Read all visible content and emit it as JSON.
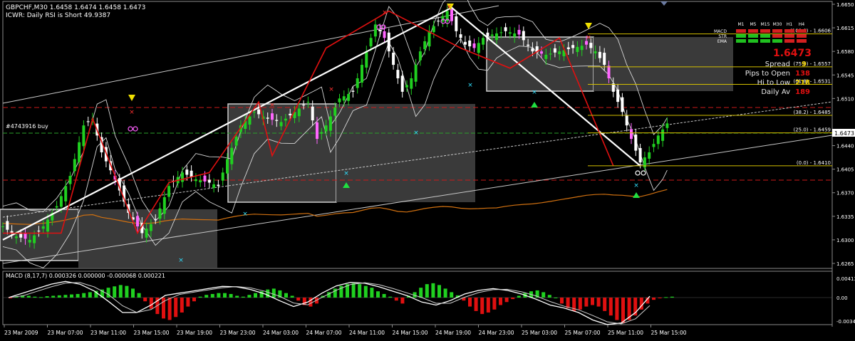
{
  "main_panel": {
    "header_line1": "GBPCHF,M30  1.6458 1.6474 1.6458 1.6473",
    "header_line2": "ICWR: Daily RSI is Short 49.9387",
    "order_label": "#4743916 buy",
    "current_price": "1.6473"
  },
  "info_panel": {
    "big_price": "1.6473",
    "rows": [
      {
        "label": "Spread",
        "value": "9"
      },
      {
        "label": "Pips to Open",
        "value": "138"
      },
      {
        "label": "Hi to Low",
        "value": "218"
      },
      {
        "label": "Daily Av",
        "value": "189"
      }
    ],
    "matrix_cols": [
      "M1",
      "M5",
      "M15",
      "M30",
      "H1",
      "H4"
    ],
    "matrix_rows": [
      "MACD",
      "STR",
      "EMA"
    ],
    "matrix_colors": [
      [
        "#d42020",
        "#d42020",
        "#d42020",
        "#d42020",
        "#d42020",
        "#d42020"
      ],
      [
        "#20c020",
        "#20c020",
        "#20c020",
        "#d42020",
        "#d42020",
        "#d42020"
      ],
      [
        "#20c020",
        "#20c020",
        "#20c020",
        "#20c020",
        "#d42020",
        "#d42020"
      ]
    ]
  },
  "fib_levels": [
    {
      "label": "(100.0) - 1.6606",
      "price": 1.6606
    },
    {
      "label": "(75.0) - 1.6557",
      "price": 1.6557
    },
    {
      "label": "(61.8) - 1.6531",
      "price": 1.6531
    },
    {
      "label": "(38.2) - 1.6485",
      "price": 1.6485
    },
    {
      "label": "(25.0) - 1.6459",
      "price": 1.6459
    },
    {
      "label": "(0.0) - 1.6410",
      "price": 1.641
    }
  ],
  "macd_panel": {
    "header": "MACD  (8,17,7) 0.000326 0.000000 -0.000068 0.000221",
    "axis_labels": [
      "0.00413",
      "0.00",
      "-0.00343"
    ]
  },
  "colors": {
    "bull_candle": "#20d020",
    "bear_candle": "#ffffff",
    "magenta_candle": "#ff66ff",
    "fib_line": "#d4c000",
    "red_dash": "#cc1a1a",
    "green_dash": "#2aa02a",
    "zigzag_red": "#e01010",
    "trend_white": "#ffffff",
    "ma_orange": "#d07010"
  },
  "chart_data": {
    "type": "candlestick",
    "symbol": "GBPCHF",
    "timeframe": "M30",
    "ylim": [
      1.6265,
      1.665
    ],
    "y_ticks": [
      1.665,
      1.6615,
      1.658,
      1.6545,
      1.651,
      1.6473,
      1.644,
      1.6405,
      1.637,
      1.6335,
      1.63,
      1.6265
    ],
    "x_ticks": [
      "23 Mar 2009",
      "23 Mar 07:00",
      "23 Mar 11:00",
      "23 Mar 15:00",
      "23 Mar 19:00",
      "23 Mar 23:00",
      "24 Mar 03:00",
      "24 Mar 07:00",
      "24 Mar 11:00",
      "24 Mar 15:00",
      "24 Mar 19:00",
      "24 Mar 23:00",
      "25 Mar 03:00",
      "25 Mar 07:00",
      "25 Mar 11:00",
      "25 Mar 15:00"
    ],
    "close_path": [
      [
        0,
        1.632
      ],
      [
        3,
        1.6305
      ],
      [
        6,
        1.63
      ],
      [
        9,
        1.632
      ],
      [
        12,
        1.635
      ],
      [
        15,
        1.6395
      ],
      [
        18,
        1.647
      ],
      [
        20,
        1.648
      ],
      [
        22,
        1.643
      ],
      [
        25,
        1.639
      ],
      [
        28,
        1.634
      ],
      [
        31,
        1.631
      ],
      [
        34,
        1.633
      ],
      [
        37,
        1.638
      ],
      [
        40,
        1.64
      ],
      [
        43,
        1.639
      ],
      [
        46,
        1.6385
      ],
      [
        48,
        1.638
      ],
      [
        50,
        1.642
      ],
      [
        53,
        1.647
      ],
      [
        56,
        1.649
      ],
      [
        59,
        1.648
      ],
      [
        62,
        1.6475
      ],
      [
        65,
        1.649
      ],
      [
        68,
        1.6505
      ],
      [
        70,
        1.645
      ],
      [
        72,
        1.647
      ],
      [
        75,
        1.651
      ],
      [
        78,
        1.652
      ],
      [
        80,
        1.656
      ],
      [
        83,
        1.662
      ],
      [
        85,
        1.66
      ],
      [
        87,
        1.656
      ],
      [
        89,
        1.652
      ],
      [
        91,
        1.654
      ],
      [
        93,
        1.658
      ],
      [
        95,
        1.661
      ],
      [
        97,
        1.6625
      ],
      [
        99,
        1.664
      ],
      [
        101,
        1.661
      ],
      [
        103,
        1.659
      ],
      [
        105,
        1.6585
      ],
      [
        107,
        1.66
      ],
      [
        109,
        1.6605
      ],
      [
        112,
        1.661
      ],
      [
        115,
        1.6605
      ],
      [
        118,
        1.658
      ],
      [
        121,
        1.6575
      ],
      [
        124,
        1.658
      ],
      [
        127,
        1.6585
      ],
      [
        130,
        1.659
      ],
      [
        132,
        1.658
      ],
      [
        134,
        1.656
      ],
      [
        136,
        1.652
      ],
      [
        138,
        1.649
      ],
      [
        140,
        1.645
      ],
      [
        142,
        1.6415
      ],
      [
        144,
        1.643
      ],
      [
        146,
        1.6455
      ],
      [
        148,
        1.6473
      ]
    ],
    "zigzag_red": [
      [
        0,
        1.631
      ],
      [
        13,
        1.631
      ],
      [
        20,
        1.648
      ],
      [
        30,
        1.631
      ],
      [
        37,
        1.6385
      ],
      [
        46,
        1.64
      ],
      [
        57,
        1.6505
      ],
      [
        60,
        1.6425
      ],
      [
        72,
        1.6585
      ],
      [
        86,
        1.664
      ],
      [
        102,
        1.6585
      ],
      [
        113,
        1.6555
      ],
      [
        124,
        1.66
      ],
      [
        136,
        1.641
      ]
    ],
    "zigzag_white": [
      [
        0,
        1.63
      ],
      [
        100,
        1.6645
      ],
      [
        142,
        1.641
      ]
    ],
    "macd_histogram": [
      -0.0001,
      0.0002,
      0.0005,
      0.0004,
      0.0002,
      0.0001,
      0.0003,
      0.0004,
      0.0005,
      0.0006,
      0.0007,
      0.0008,
      0.001,
      0.0012,
      0.0015,
      0.0018,
      0.0022,
      0.0025,
      0.0028,
      0.0026,
      0.002,
      0.001,
      -0.0005,
      -0.0015,
      -0.0022,
      -0.0028,
      -0.003,
      -0.0026,
      -0.002,
      -0.0012,
      -0.0005,
      0.0002,
      0.0006,
      0.0008,
      0.001,
      0.001,
      0.0008,
      0.0004,
      0.0002,
      0.0006,
      0.001,
      0.0014,
      0.0018,
      0.002,
      0.0016,
      0.001,
      0.0004,
      -0.0004,
      -0.001,
      -0.0012,
      -0.0008,
      0.0004,
      0.0012,
      0.002,
      0.0026,
      0.003,
      0.0032,
      0.003,
      0.0026,
      0.0022,
      0.0014,
      0.0008,
      0.0002,
      -0.0004,
      -0.0008,
      0.0004,
      0.0012,
      0.0022,
      0.003,
      0.0032,
      0.0028,
      0.002,
      0.0012,
      0.0005,
      -0.0004,
      -0.0012,
      -0.0018,
      -0.0022,
      -0.002,
      -0.0016,
      -0.001,
      -0.0006,
      -0.0002,
      0.0004,
      0.001,
      0.0014,
      0.0016,
      0.0012,
      0.0006,
      0.0,
      -0.0008,
      -0.0014,
      -0.0018,
      -0.0016,
      -0.0012,
      -0.001,
      -0.0012,
      -0.0018,
      -0.0024,
      -0.003,
      -0.0034,
      -0.003,
      -0.0024,
      -0.0016,
      -0.0008,
      -0.0003,
      -0.0001,
      0.0001,
      0.0002
    ],
    "macd_line": [
      0.0,
      0.001,
      0.002,
      0.003,
      0.0036,
      0.003,
      0.0015,
      -0.0005,
      -0.002,
      -0.002,
      -0.001,
      0.0005,
      0.001,
      0.0015,
      0.002,
      0.0025,
      0.0024,
      0.0018,
      0.0008,
      -0.0004,
      -0.0012,
      -0.0006,
      0.001,
      0.0026,
      0.0034,
      0.0032,
      0.0024,
      0.0014,
      0.0004,
      -0.0006,
      -0.001,
      -0.0004,
      0.0008,
      0.0016,
      0.002,
      0.0016,
      0.0008,
      -0.0002,
      -0.001,
      -0.0014,
      -0.002,
      -0.003,
      -0.0036,
      -0.0034,
      -0.002,
      0.0003
    ],
    "macd_ylim": [
      -0.00343,
      0.00413
    ]
  }
}
